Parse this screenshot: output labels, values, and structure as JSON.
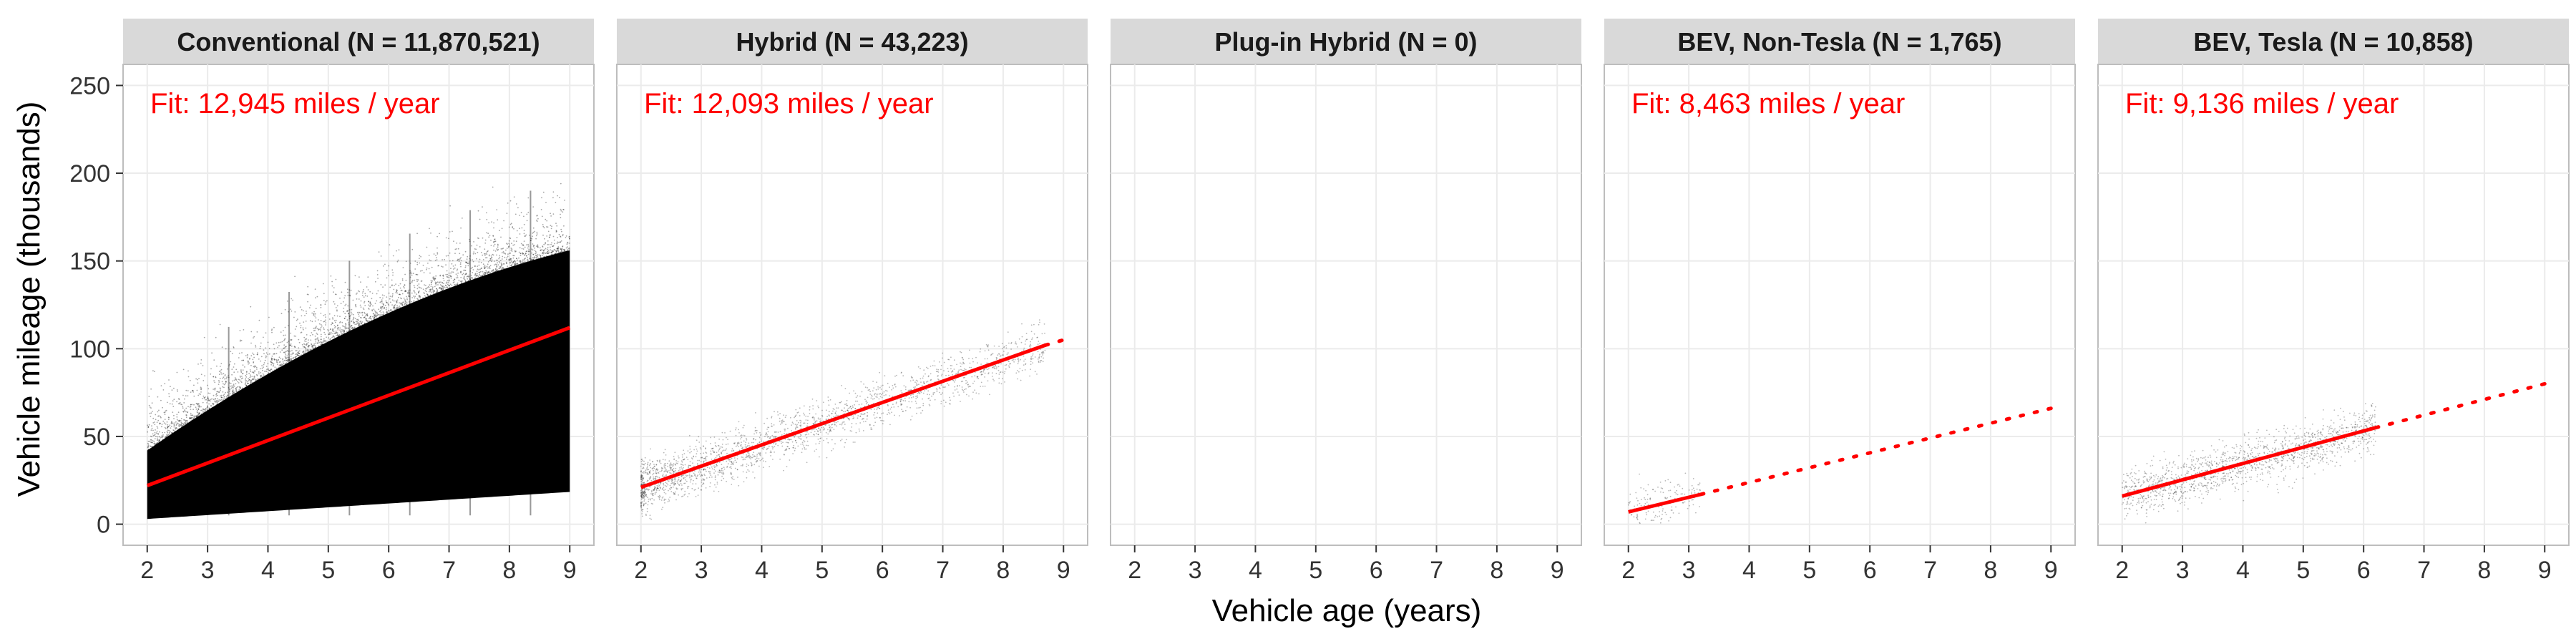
{
  "chart_data": {
    "type": "scatter",
    "xlabel": "Vehicle age (years)",
    "ylabel": "Vehicle mileage (thousands)",
    "xlim": [
      1.6,
      9.4
    ],
    "ylim": [
      -12,
      262
    ],
    "x_ticks": [
      2,
      3,
      4,
      5,
      6,
      7,
      8,
      9
    ],
    "y_ticks": [
      0,
      50,
      100,
      150,
      200,
      250
    ],
    "x_tick_labels": [
      "2",
      "3",
      "4",
      "5",
      "6",
      "7",
      "8",
      "9"
    ],
    "y_tick_labels": [
      "0",
      "50",
      "100",
      "150",
      "200",
      "250"
    ],
    "grid": true,
    "fit_color": "#ff0000",
    "point_color": "#000000",
    "strip_color": "#d9d9d9",
    "panels": [
      {
        "title": "Conventional (N = 11,870,521)",
        "fit_label": "Fit: 12,945 miles / year",
        "fit_solid": [
          [
            2.0,
            22
          ],
          [
            9.0,
            112
          ]
        ],
        "fit_dotted": null,
        "data_x_range": [
          2.0,
          9.0
        ],
        "density": "very-high"
      },
      {
        "title": "Hybrid (N = 43,223)",
        "fit_label": "Fit: 12,093 miles / year",
        "fit_solid": [
          [
            2.0,
            21
          ],
          [
            8.7,
            102
          ]
        ],
        "fit_dotted": [
          [
            8.7,
            102
          ],
          [
            9.0,
            105
          ]
        ],
        "data_x_range": [
          2.0,
          8.7
        ],
        "density": "medium"
      },
      {
        "title": "Plug-in Hybrid (N = 0)",
        "fit_label": "",
        "fit_solid": null,
        "fit_dotted": null,
        "data_x_range": null,
        "density": "none"
      },
      {
        "title": "BEV, Non-Tesla (N = 1,765)",
        "fit_label": "Fit: 8,463 miles / year",
        "fit_solid": [
          [
            2.0,
            7
          ],
          [
            3.2,
            17
          ]
        ],
        "fit_dotted": [
          [
            3.2,
            17
          ],
          [
            9.0,
            66
          ]
        ],
        "data_x_range": [
          2.0,
          3.2
        ],
        "density": "low"
      },
      {
        "title": "BEV, Tesla (N = 10,858)",
        "fit_label": "Fit: 9,136 miles / year",
        "fit_solid": [
          [
            2.0,
            16
          ],
          [
            6.2,
            55
          ]
        ],
        "fit_dotted": [
          [
            6.2,
            55
          ],
          [
            9.0,
            80
          ]
        ],
        "data_x_range": [
          2.0,
          6.2
        ],
        "density": "medium-low"
      }
    ]
  }
}
